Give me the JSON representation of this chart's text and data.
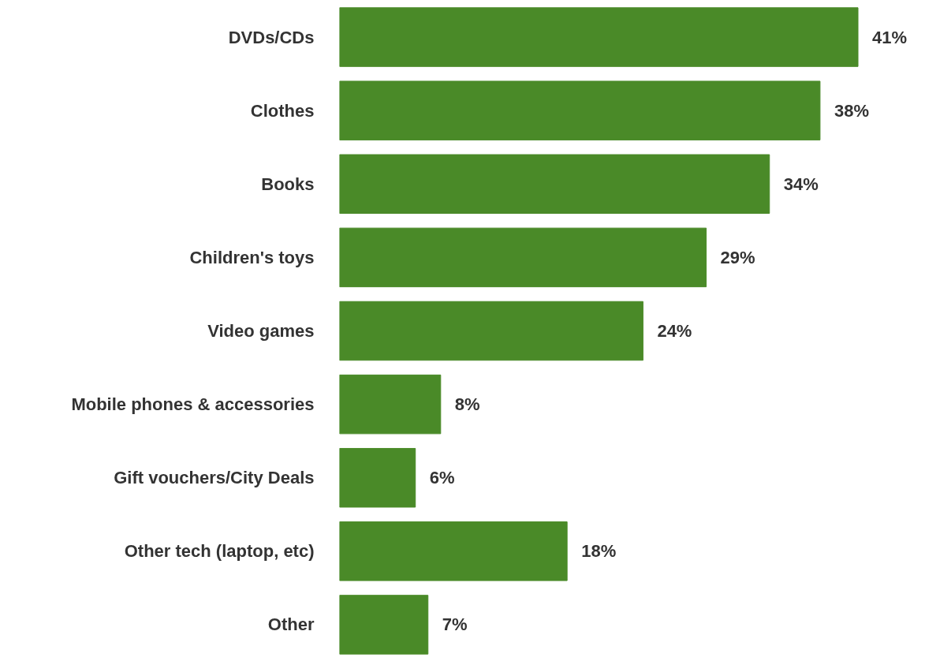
{
  "chart_data": {
    "type": "bar",
    "orientation": "horizontal",
    "categories": [
      "DVDs/CDs",
      "Clothes",
      "Books",
      "Children's toys",
      "Video games",
      "Mobile phones & accessories",
      "Gift vouchers/City Deals",
      "Other tech (laptop, etc)",
      "Other"
    ],
    "values": [
      41,
      38,
      34,
      29,
      24,
      8,
      6,
      18,
      7
    ],
    "value_labels": [
      "41%",
      "38%",
      "34%",
      "29%",
      "24%",
      "8%",
      "6%",
      "18%",
      "7%"
    ],
    "color": "#4a8a28",
    "tick_labels": "y",
    "grid": false
  }
}
